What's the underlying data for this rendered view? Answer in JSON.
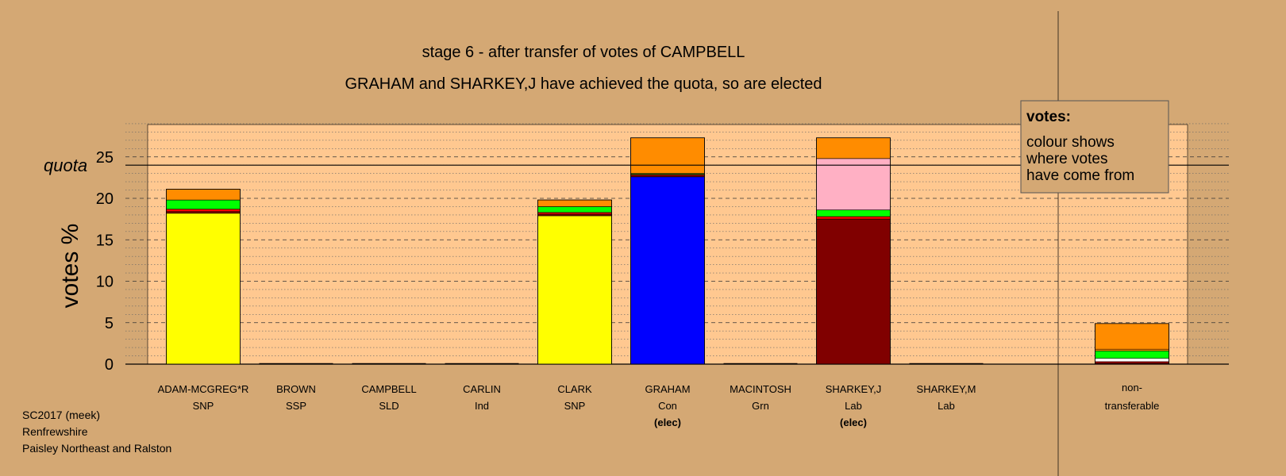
{
  "chart_data": {
    "type": "bar",
    "title": "stage 6 - after transfer of votes of CAMPBELL",
    "subtitle": "GRAHAM and SHARKEY,J have achieved the quota, so are elected",
    "ylabel": "votes %",
    "ylim": [
      0,
      28
    ],
    "yticks": [
      "0",
      "5",
      "10",
      "15",
      "20",
      "25"
    ],
    "grid": true,
    "quota": 24,
    "quota_label": "quota",
    "colors": {
      "snp": "#ffff00",
      "con": "#0000ff",
      "lab": "#ffb0c4",
      "grn": "#00ff00",
      "sld": "#ff8c00",
      "ssp": "#ff0000",
      "ind": "#800000",
      "nontransferable": "#ffffff"
    },
    "candidates": [
      {
        "name": "ADAM-MCGREG*R",
        "party": "SNP",
        "note": "",
        "segments": [
          {
            "color": "snp",
            "value": 18.2
          },
          {
            "color": "ind",
            "value": 0.2
          },
          {
            "color": "ssp",
            "value": 0.3
          },
          {
            "color": "grn",
            "value": 1.1
          },
          {
            "color": "sld",
            "value": 1.3
          }
        ]
      },
      {
        "name": "BROWN",
        "party": "SSP",
        "note": "",
        "segments": []
      },
      {
        "name": "CAMPBELL",
        "party": "SLD",
        "note": "",
        "segments": []
      },
      {
        "name": "CARLIN",
        "party": "Ind",
        "note": "",
        "segments": []
      },
      {
        "name": "CLARK",
        "party": "SNP",
        "note": "",
        "segments": [
          {
            "color": "snp",
            "value": 17.9
          },
          {
            "color": "ind",
            "value": 0.2
          },
          {
            "color": "ssp",
            "value": 0.2
          },
          {
            "color": "grn",
            "value": 0.7
          },
          {
            "color": "sld",
            "value": 0.8
          }
        ]
      },
      {
        "name": "GRAHAM",
        "party": "Con",
        "note": "(elec)",
        "segments": [
          {
            "color": "con",
            "value": 22.6
          },
          {
            "color": "ind",
            "value": 0.2
          },
          {
            "color": "ssp",
            "value": 0.1
          },
          {
            "color": "grn",
            "value": 0.1
          },
          {
            "color": "sld",
            "value": 4.3
          }
        ]
      },
      {
        "name": "MACINTOSH",
        "party": "Grn",
        "note": "",
        "segments": []
      },
      {
        "name": "SHARKEY,J",
        "party": "Lab",
        "note": "(elec)",
        "segments": [
          {
            "color": "ind",
            "value": 17.5
          },
          {
            "color": "ssp",
            "value": 0.3
          },
          {
            "color": "grn",
            "value": 0.8
          },
          {
            "color": "lab",
            "value": 6.2
          },
          {
            "color": "sld",
            "value": 2.5
          }
        ]
      },
      {
        "name": "SHARKEY,M",
        "party": "Lab",
        "note": "",
        "segments": []
      },
      {
        "name": "non-",
        "party": "transferable",
        "note": "",
        "segments": [
          {
            "color": "ind",
            "value": 0.15
          },
          {
            "color": "ssp",
            "value": 0.15
          },
          {
            "color": "nontransferable",
            "value": 0.4
          },
          {
            "color": "grn",
            "value": 0.9
          },
          {
            "color": "sld",
            "value": 0.2
          },
          {
            "color": "sld",
            "value": 3.1
          }
        ]
      }
    ],
    "legend": {
      "title": "votes:",
      "lines": [
        "colour shows",
        "where votes",
        "have come from"
      ],
      "position": "top-right"
    }
  },
  "footer": [
    "SC2017 (meek)",
    "Renfrewshire",
    "Paisley Northeast and Ralston"
  ]
}
